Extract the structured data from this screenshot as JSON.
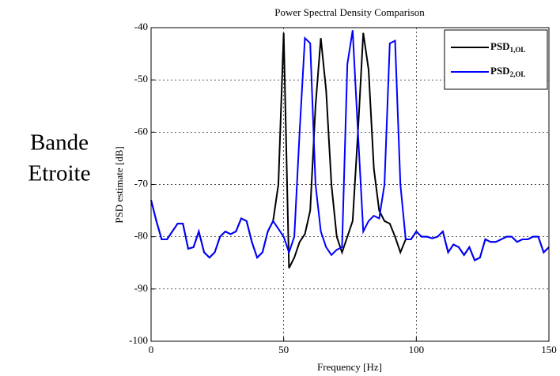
{
  "side_label": [
    "Bande",
    "Etroite"
  ],
  "chart_data": {
    "type": "line",
    "title": "Power Spectral Density Comparison",
    "x_label": "Frequency [Hz]",
    "y_label": "PSD estimate  [dB]",
    "x": [
      0,
      2,
      4,
      6,
      8,
      10,
      12,
      14,
      16,
      18,
      20,
      22,
      24,
      26,
      28,
      30,
      32,
      34,
      36,
      38,
      40,
      42,
      44,
      46,
      48,
      50,
      52,
      54,
      56,
      58,
      60,
      62,
      64,
      66,
      68,
      70,
      72,
      74,
      76,
      78,
      80,
      82,
      84,
      86,
      88,
      90,
      92,
      94,
      96,
      98,
      100,
      102,
      104,
      106,
      108,
      110,
      112,
      114,
      116,
      118,
      120,
      122,
      124,
      126,
      128,
      130,
      132,
      134,
      136,
      138,
      140,
      142,
      144,
      146,
      148,
      150
    ],
    "series": [
      {
        "name": "PSD1,OL",
        "color": "#000000",
        "values": [
          -73,
          -77,
          -80.5,
          -80.5,
          -79,
          -77.5,
          -77.5,
          -82.3,
          -82,
          -79,
          -83,
          -84,
          -83,
          -80,
          -79,
          -79.5,
          -79,
          -76.5,
          -77,
          -81,
          -84,
          -83,
          -79,
          -77,
          -70,
          -41,
          -86,
          -84,
          -81,
          -79.5,
          -75,
          -55,
          -42,
          -52,
          -70,
          -80,
          -83,
          -80,
          -77,
          -60,
          -41,
          -48,
          -67,
          -75,
          -77,
          -77.5,
          -80,
          -83,
          -80.5,
          -80.5,
          -79,
          -80,
          -80,
          -80.3,
          -80,
          -79,
          -83,
          -81.5,
          -82,
          -83.5,
          -82,
          -84.5,
          -84,
          -80.5,
          -81,
          -81,
          -80.5,
          -80,
          -80,
          -81,
          -80.5,
          -80.5,
          -80,
          -80,
          -83,
          -82
        ]
      },
      {
        "name": "PSD2,OL",
        "color": "#0000ff",
        "values": [
          -73,
          -77,
          -80.5,
          -80.5,
          -79,
          -77.5,
          -77.5,
          -82.3,
          -82,
          -79,
          -83,
          -84,
          -83,
          -80,
          -79,
          -79.5,
          -79,
          -76.5,
          -77,
          -81,
          -84,
          -83,
          -79,
          -77,
          -78.5,
          -80,
          -83,
          -80,
          -60,
          -42,
          -43,
          -70,
          -79,
          -82,
          -83.5,
          -82.5,
          -82,
          -47,
          -40.5,
          -60,
          -79,
          -77,
          -76,
          -76.5,
          -70,
          -43,
          -42.5,
          -70,
          -80.5,
          -80.5,
          -79,
          -80,
          -80,
          -80.3,
          -80,
          -79,
          -83,
          -81.5,
          -82,
          -83.5,
          -82,
          -84.5,
          -84,
          -80.5,
          -81,
          -81,
          -80.5,
          -80,
          -80,
          -81,
          -80.5,
          -80.5,
          -80,
          -80,
          -83,
          -82
        ]
      }
    ],
    "xlim": [
      0,
      150
    ],
    "xticks": [
      0,
      50,
      100,
      150
    ],
    "ylim": [
      -100,
      -40
    ],
    "yticks": [
      -100,
      -90,
      -80,
      -70,
      -60,
      -50,
      -40
    ],
    "grid": true,
    "legend": "top-right"
  }
}
